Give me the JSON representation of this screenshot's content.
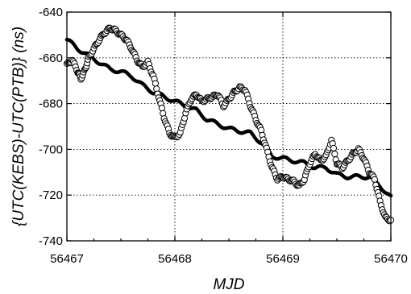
{
  "chart_data": {
    "type": "scatter",
    "xlabel": "MJD",
    "ylabel": "{UTC(KEBS)-UTC(PTB)} (ns)",
    "xlim": [
      56467,
      56470
    ],
    "ylim": [
      -740,
      -640
    ],
    "xticks": [
      56467,
      56468,
      56469,
      56470
    ],
    "yticks": [
      -740,
      -720,
      -700,
      -680,
      -660,
      -640
    ],
    "grid": true,
    "series": [
      {
        "marker": "filled-circle",
        "color": "#000000",
        "points": [
          [
            56467.0,
            -652
          ],
          [
            56467.1,
            -656
          ],
          [
            56467.2,
            -659
          ],
          [
            56467.3,
            -662
          ],
          [
            56467.4,
            -665
          ],
          [
            56467.5,
            -666
          ],
          [
            56467.6,
            -668
          ],
          [
            56467.7,
            -672
          ],
          [
            56467.8,
            -675
          ],
          [
            56467.9,
            -677
          ],
          [
            56468.0,
            -679
          ],
          [
            56468.1,
            -681
          ],
          [
            56468.2,
            -683
          ],
          [
            56468.3,
            -687
          ],
          [
            56468.4,
            -689
          ],
          [
            56468.5,
            -691
          ],
          [
            56468.6,
            -692
          ],
          [
            56468.7,
            -693
          ],
          [
            56468.8,
            -697
          ],
          [
            56468.9,
            -703
          ],
          [
            56469.0,
            -704
          ],
          [
            56469.1,
            -705
          ],
          [
            56469.2,
            -706
          ],
          [
            56469.3,
            -708
          ],
          [
            56469.4,
            -708
          ],
          [
            56469.5,
            -711
          ],
          [
            56469.6,
            -712
          ],
          [
            56469.7,
            -712
          ],
          [
            56469.8,
            -712
          ],
          [
            56469.9,
            -716
          ],
          [
            56470.0,
            -721
          ]
        ]
      },
      {
        "marker": "open-circle",
        "color": "#000000",
        "points": [
          [
            56467.0,
            -663
          ],
          [
            56467.05,
            -661
          ],
          [
            56467.1,
            -666
          ],
          [
            56467.13,
            -669
          ],
          [
            56467.17,
            -665
          ],
          [
            56467.2,
            -660
          ],
          [
            56467.25,
            -656
          ],
          [
            56467.3,
            -652
          ],
          [
            56467.35,
            -649
          ],
          [
            56467.4,
            -647
          ],
          [
            56467.45,
            -648
          ],
          [
            56467.5,
            -650
          ],
          [
            56467.55,
            -652
          ],
          [
            56467.6,
            -656
          ],
          [
            56467.65,
            -661
          ],
          [
            56467.7,
            -664
          ],
          [
            56467.75,
            -662
          ],
          [
            56467.8,
            -668
          ],
          [
            56467.85,
            -677
          ],
          [
            56467.9,
            -686
          ],
          [
            56467.95,
            -693
          ],
          [
            56468.0,
            -695
          ],
          [
            56468.05,
            -693
          ],
          [
            56468.1,
            -684
          ],
          [
            56468.15,
            -678
          ],
          [
            56468.2,
            -676
          ],
          [
            56468.25,
            -679
          ],
          [
            56468.3,
            -678
          ],
          [
            56468.35,
            -677
          ],
          [
            56468.4,
            -676
          ],
          [
            56468.45,
            -681
          ],
          [
            56468.5,
            -678
          ],
          [
            56468.55,
            -675
          ],
          [
            56468.6,
            -673
          ],
          [
            56468.65,
            -674
          ],
          [
            56468.7,
            -681
          ],
          [
            56468.75,
            -687
          ],
          [
            56468.8,
            -692
          ],
          [
            56468.85,
            -700
          ],
          [
            56468.9,
            -708
          ],
          [
            56468.95,
            -713
          ],
          [
            56469.0,
            -712
          ],
          [
            56469.05,
            -713
          ],
          [
            56469.1,
            -714
          ],
          [
            56469.15,
            -716
          ],
          [
            56469.2,
            -713
          ],
          [
            56469.25,
            -706
          ],
          [
            56469.3,
            -702
          ],
          [
            56469.35,
            -705
          ],
          [
            56469.4,
            -703
          ],
          [
            56469.45,
            -696
          ],
          [
            56469.5,
            -706
          ],
          [
            56469.55,
            -708
          ],
          [
            56469.6,
            -705
          ],
          [
            56469.65,
            -702
          ],
          [
            56469.7,
            -700
          ],
          [
            56469.75,
            -704
          ],
          [
            56469.8,
            -710
          ],
          [
            56469.85,
            -713
          ],
          [
            56469.9,
            -723
          ],
          [
            56469.95,
            -730
          ],
          [
            56470.0,
            -731
          ]
        ]
      }
    ]
  }
}
